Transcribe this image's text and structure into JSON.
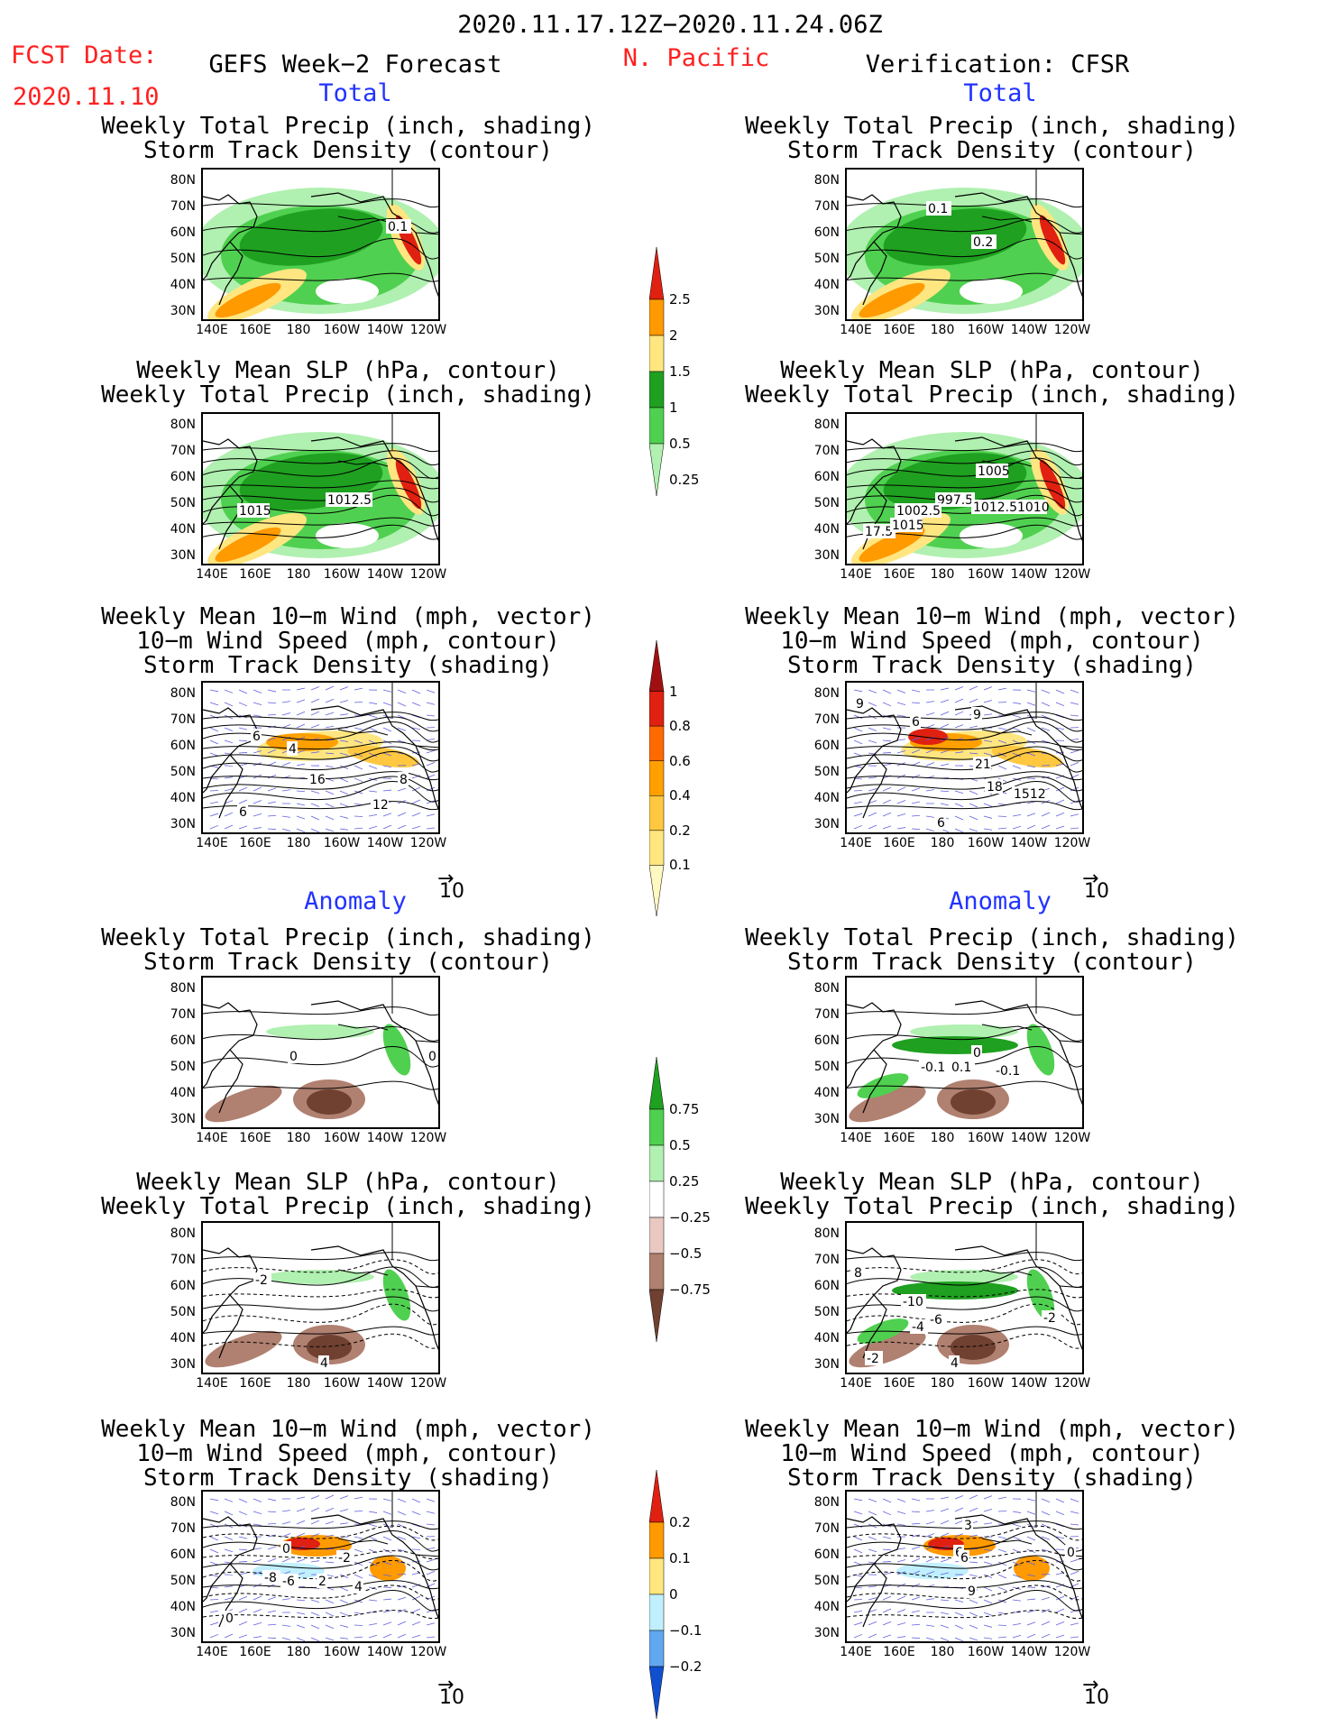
{
  "header": {
    "period": "2020.11.17.12Z−2020.11.24.06Z",
    "region": "N. Pacific",
    "fcst_label": "FCST Date:",
    "fcst_date": "2020.11.10",
    "left_title": "GEFS Week−2 Forecast",
    "right_title": "Verification: CFSR"
  },
  "sections": {
    "total": "Total",
    "anomaly": "Anomaly"
  },
  "panel_titles": {
    "precip_storm": [
      "Weekly Total Precip (inch, shading)",
      "Storm Track Density (contour)"
    ],
    "slp_precip": [
      "Weekly Mean SLP (hPa, contour)",
      "Weekly Total Precip (inch, shading)"
    ],
    "wind_storm": [
      "Weekly Mean 10−m Wind (mph, vector)",
      "10−m Wind Speed (mph, contour)",
      "Storm Track Density (shading)"
    ]
  },
  "axes": {
    "lat_ticks": [
      "80N",
      "70N",
      "60N",
      "50N",
      "40N",
      "30N"
    ],
    "lon_ticks": [
      "140E",
      "160E",
      "180",
      "160W",
      "140W",
      "120W"
    ]
  },
  "vector_ref": "10",
  "colorbars": {
    "precip_total": {
      "levels": [
        "2.5",
        "2",
        "1.5",
        "1",
        "0.5",
        "0.25"
      ],
      "colors": [
        "#e02010",
        "#ff9a00",
        "#ffe680",
        "#1fa020",
        "#50d050",
        "#b0f0b0"
      ]
    },
    "storm_total": {
      "levels": [
        "1",
        "0.8",
        "0.6",
        "0.4",
        "0.2",
        "0.1"
      ],
      "colors": [
        "#a01010",
        "#e02010",
        "#ff6a00",
        "#ffa000",
        "#ffc840",
        "#ffe680",
        "#fff8c0"
      ]
    },
    "precip_anom": {
      "levels": [
        "0.75",
        "0.5",
        "0.25",
        "−0.25",
        "−0.5",
        "−0.75"
      ],
      "colors": [
        "#1fa020",
        "#50d050",
        "#b0f0b0",
        "#ffffff",
        "#e8c8c0",
        "#b08070",
        "#704030"
      ]
    },
    "storm_anom": {
      "levels": [
        "0.2",
        "0.1",
        "0",
        "−0.1",
        "−0.2"
      ],
      "colors": [
        "#e02010",
        "#ff9a00",
        "#ffe680",
        "#c0f0ff",
        "#60a8f0",
        "#1050d0"
      ]
    }
  },
  "panels": {
    "l1": {
      "labels": [
        "0.1"
      ]
    },
    "r1": {
      "labels": [
        "0.1",
        "0.2"
      ]
    },
    "l2": {
      "labels": [
        "1015",
        "1012.5"
      ]
    },
    "r2": {
      "labels": [
        "1005",
        "997.5",
        "1002.5",
        "1012.51010",
        "17.5",
        "1015"
      ]
    },
    "l3": {
      "labels": [
        "6",
        "4",
        "16",
        "12",
        "6",
        "8"
      ]
    },
    "r3": {
      "labels": [
        "9",
        "6",
        "9",
        "21",
        "18",
        "1512",
        "6"
      ]
    },
    "l4": {
      "labels": [
        "0",
        "0"
      ]
    },
    "r4": {
      "labels": [
        "0",
        "-0.1",
        "0.1",
        "-0.1"
      ]
    },
    "l5": {
      "labels": [
        "-2",
        "4"
      ]
    },
    "r5": {
      "labels": [
        "8",
        "-10",
        "-4",
        "-6",
        "-2",
        "-2",
        "4"
      ]
    },
    "l6": {
      "labels": [
        "0",
        "-2",
        "-8",
        "-6",
        "2",
        "4",
        "0"
      ]
    },
    "r6": {
      "labels": [
        "3",
        "6",
        "6",
        "0",
        "9"
      ]
    }
  }
}
